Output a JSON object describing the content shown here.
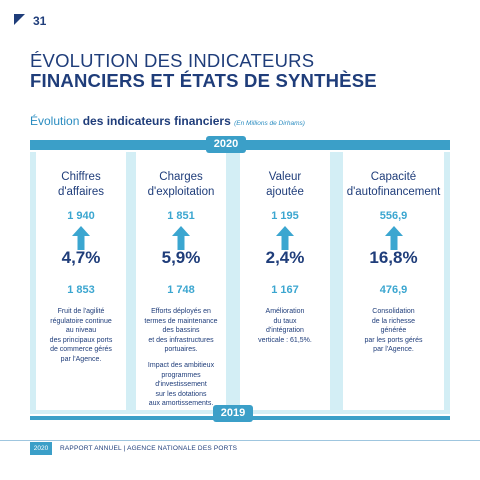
{
  "page_number": "31",
  "title_line1": "ÉVOLUTION DES INDICATEURS",
  "title_line2": "FINANCIERS ET ÉTATS DE SYNTHÈSE",
  "subtitle": {
    "prefix": "Évolution ",
    "bold": "des indicateurs financiers",
    "note": "(En Millions de Dirhams)"
  },
  "year_top": "2020",
  "year_bottom": "2019",
  "columns": [
    {
      "title_line1": "Chiffres",
      "title_line2": "d'affaires",
      "value_2020": "1 940",
      "growth": "4,7%",
      "value_2019": "1 853",
      "description": "Fruit de l'agilité\nrégulatoire continue\nau niveau\ndes principaux ports\nde commerce gérés\npar l'Agence."
    },
    {
      "title_line1": "Charges",
      "title_line2": "d'exploitation",
      "value_2020": "1 851",
      "growth": "5,9%",
      "value_2019": "1 748",
      "description": "Efforts déployés en\ntermes de maintenance\ndes bassins\net des infrastructures\nportuaires.",
      "description_2": "Impact des ambitieux\nprogrammes\nd'investissement\nsur les dotations\naux amortissements."
    },
    {
      "title_line1": "Valeur",
      "title_line2": "ajoutée",
      "value_2020": "1 195",
      "growth": "2,4%",
      "value_2019": "1 167",
      "description": "Amélioration\ndu taux\nd'intégration\nverticale : 61,5%."
    },
    {
      "title_line1": "Capacité",
      "title_line2": "d'autofinancement",
      "value_2020": "556,9",
      "growth": "16,8%",
      "value_2019": "476,9",
      "description": "Consolidation\nde la richesse\ngénérée\npar les ports gérés\npar l'Agence."
    }
  ],
  "footer": {
    "year": "2020",
    "text": "RAPPORT ANNUEL  |  AGENCE NATIONALE DES PORTS"
  },
  "colors": {
    "navy": "#1f3d7a",
    "accent_blue": "#3ba6d0",
    "panel": "#d3eef5"
  }
}
